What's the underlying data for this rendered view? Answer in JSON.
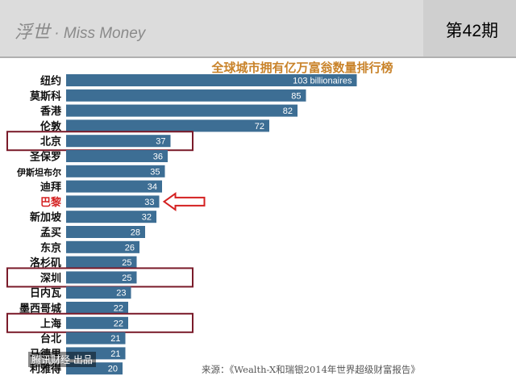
{
  "header": {
    "brand_cn": "浮世",
    "brand_sep": " · ",
    "brand_en": "Miss Money",
    "issue": "第42期"
  },
  "chart_data": {
    "type": "bar",
    "orientation": "horizontal",
    "title": "全球城市拥有亿万富翁数量排行榜",
    "categories": [
      "纽约",
      "莫斯科",
      "香港",
      "伦敦",
      "北京",
      "圣保罗",
      "伊斯坦布尔",
      "迪拜",
      "巴黎",
      "新加坡",
      "孟买",
      "东京",
      "洛杉矶",
      "深圳",
      "日内瓦",
      "墨西哥城",
      "上海",
      "台北",
      "马德里",
      "利雅得"
    ],
    "values": [
      103,
      85,
      82,
      72,
      37,
      36,
      35,
      34,
      33,
      32,
      28,
      26,
      25,
      25,
      23,
      22,
      22,
      21,
      21,
      20
    ],
    "value_labels": [
      "103 billionaires",
      "85",
      "82",
      "72",
      "37",
      "36",
      "35",
      "34",
      "33",
      "32",
      "28",
      "26",
      "25",
      "25",
      "23",
      "22",
      "22",
      "21",
      "21",
      "20"
    ],
    "highlighted": [
      "北京",
      "深圳",
      "上海"
    ],
    "highlight_color": "#7a1b2a",
    "arrow_target": "巴黎",
    "arrow_color": "#d42020",
    "bar_color": "#3d6e94"
  },
  "source": "来源：《Wealth-X和瑞银2014年世界超级财富报告》",
  "watermark": "腾讯财经 出品"
}
